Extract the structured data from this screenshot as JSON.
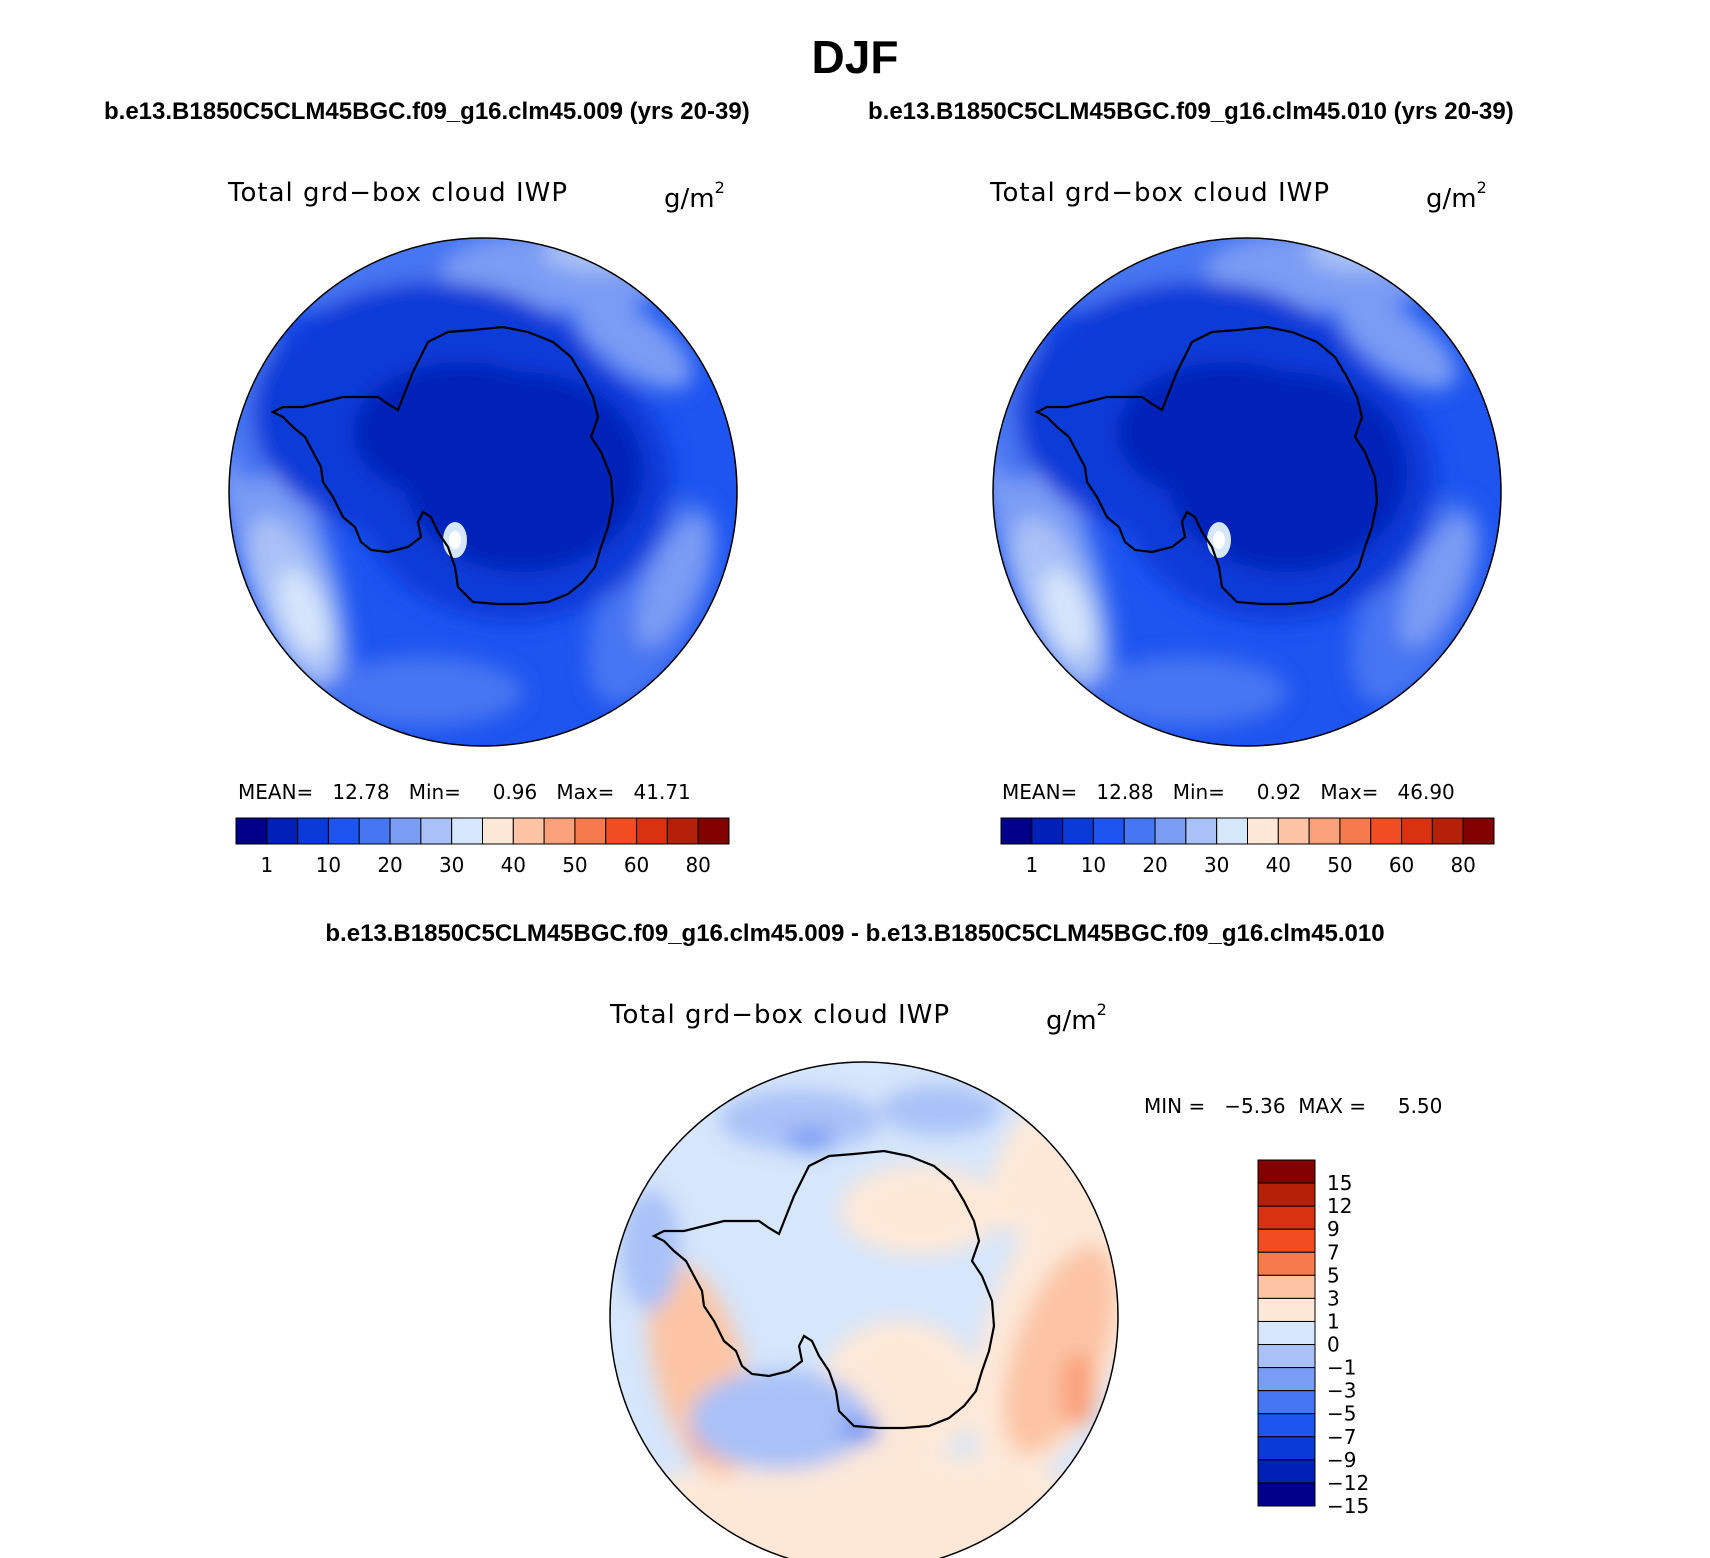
{
  "title": "DJF",
  "panels": {
    "left": {
      "run": "b.e13.B1850C5CLM45BGC.f09_g16.clm45.009 (yrs 20-39)",
      "variable": "Total grd−box cloud IWP",
      "units_base": "g/m",
      "units_exp": "2",
      "stats": "MEAN=   12.78   Min=     0.96   Max=   41.71"
    },
    "right": {
      "run": "b.e13.B1850C5CLM45BGC.f09_g16.clm45.010 (yrs 20-39)",
      "variable": "Total grd−box cloud IWP",
      "units_base": "g/m",
      "units_exp": "2",
      "stats": "MEAN=   12.88   Min=     0.92   Max=   46.90"
    },
    "diff": {
      "title": "b.e13.B1850C5CLM45BGC.f09_g16.clm45.009 - b.e13.B1850C5CLM45BGC.f09_g16.clm45.010",
      "variable": "Total grd−box cloud IWP",
      "units_base": "g/m",
      "units_exp": "2",
      "stats": "MIN =   −5.36  MAX =     5.50"
    }
  },
  "colorbar_abs": {
    "colors": [
      "#00008a",
      "#0020b8",
      "#0a3ad8",
      "#1e55f0",
      "#4676f2",
      "#7a9cf4",
      "#a9c1f7",
      "#d6e6fb",
      "#fde8d8",
      "#fcc4a4",
      "#faa07a",
      "#f67a4c",
      "#f04e22",
      "#d83210",
      "#b42008",
      "#820000"
    ],
    "labels": [
      "1",
      "10",
      "20",
      "30",
      "40",
      "50",
      "60",
      "80"
    ],
    "label_index": [
      1,
      3,
      5,
      7,
      9,
      11,
      13,
      15
    ]
  },
  "colorbar_diff": {
    "colors": [
      "#820000",
      "#b42008",
      "#d83210",
      "#f04e22",
      "#f67a4c",
      "#fcc4a4",
      "#fde8d8",
      "#d6e6fb",
      "#a9c1f7",
      "#7a9cf4",
      "#4676f2",
      "#1e55f0",
      "#0a3ad8",
      "#0020b8",
      "#00008a"
    ],
    "labels": [
      "15",
      "12",
      "9",
      "7",
      "5",
      "3",
      "1",
      "0",
      "−1",
      "−3",
      "−5",
      "−7",
      "−9",
      "−12",
      "−15"
    ]
  }
}
